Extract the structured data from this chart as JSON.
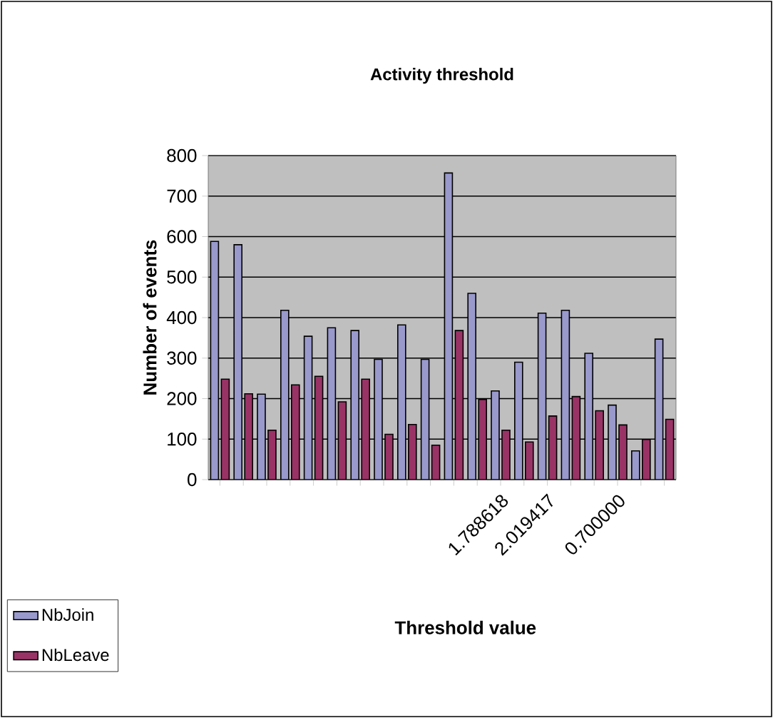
{
  "chart_data": {
    "type": "bar",
    "title": "Activity threshold",
    "xlabel": "Threshold value",
    "ylabel": "Number of events",
    "categories": [
      null,
      null,
      null,
      null,
      null,
      null,
      null,
      null,
      null,
      null,
      null,
      null,
      "1.788618",
      null,
      "2.019417",
      null,
      null,
      "0.700000",
      null,
      null
    ],
    "series": [
      {
        "name": "NbJoin",
        "color": "#9999cc",
        "values": [
          588,
          580,
          211,
          418,
          354,
          375,
          368,
          297,
          382,
          297,
          757,
          460,
          219,
          290,
          411,
          418,
          312,
          184,
          71,
          347
        ]
      },
      {
        "name": "NbLeave",
        "color": "#993366",
        "values": [
          248,
          212,
          122,
          234,
          255,
          192,
          248,
          112,
          136,
          85,
          368,
          198,
          122,
          93,
          157,
          205,
          170,
          135,
          99,
          149
        ]
      }
    ],
    "ylim": [
      0,
      800
    ],
    "yticks": [
      0,
      100,
      200,
      300,
      400,
      500,
      600,
      700,
      800
    ],
    "grid": "y",
    "legend": "bottom left"
  }
}
